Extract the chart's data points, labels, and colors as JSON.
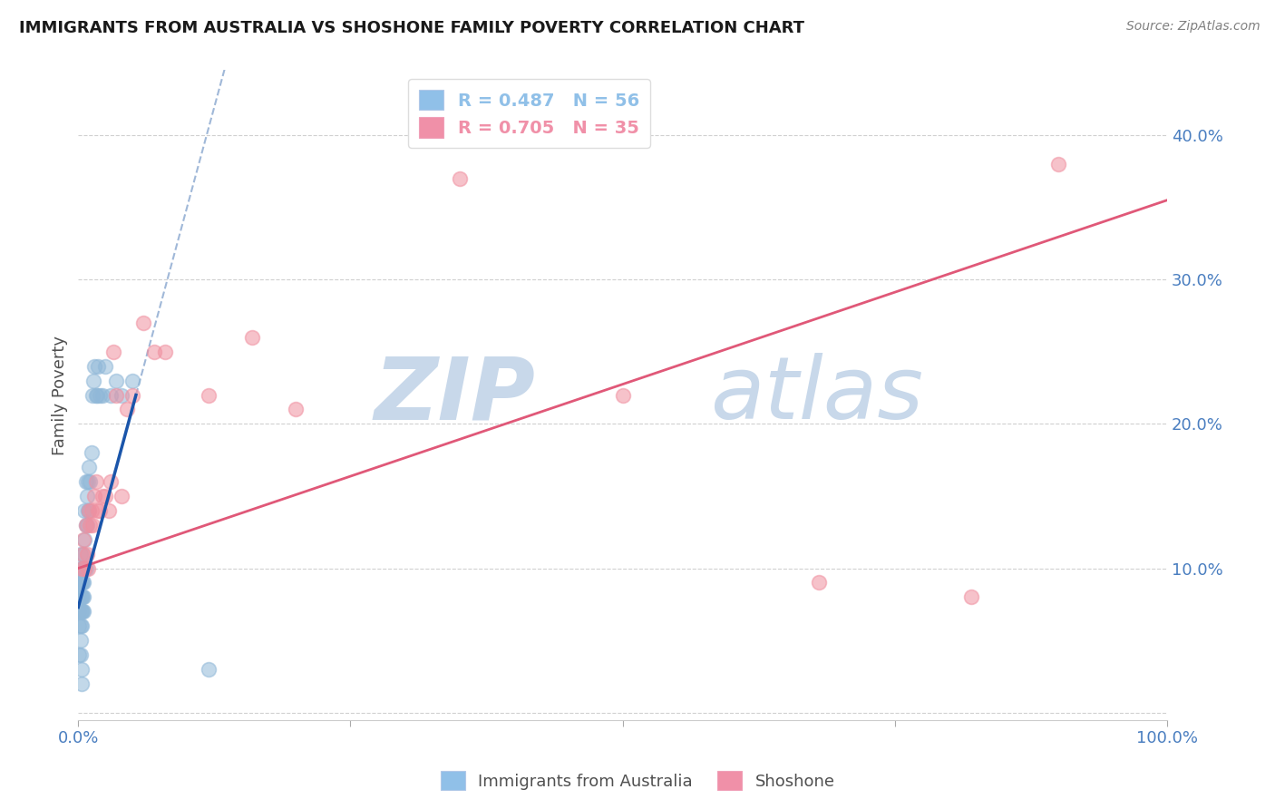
{
  "title": "IMMIGRANTS FROM AUSTRALIA VS SHOSHONE FAMILY POVERTY CORRELATION CHART",
  "source": "Source: ZipAtlas.com",
  "ylabel": "Family Poverty",
  "right_yticklabels": [
    "",
    "10.0%",
    "20.0%",
    "30.0%",
    "40.0%"
  ],
  "xlim": [
    0.0,
    1.0
  ],
  "ylim": [
    -0.005,
    0.445
  ],
  "legend_entry1_label": "R = 0.487   N = 56",
  "legend_entry2_label": "R = 0.705   N = 35",
  "legend_entry1_color": "#90c0e8",
  "legend_entry2_color": "#f090a8",
  "australia_x": [
    0.001,
    0.001,
    0.001,
    0.001,
    0.002,
    0.002,
    0.002,
    0.002,
    0.002,
    0.002,
    0.003,
    0.003,
    0.003,
    0.003,
    0.003,
    0.004,
    0.004,
    0.004,
    0.004,
    0.005,
    0.005,
    0.005,
    0.005,
    0.006,
    0.006,
    0.006,
    0.007,
    0.007,
    0.007,
    0.008,
    0.008,
    0.009,
    0.009,
    0.01,
    0.01,
    0.011,
    0.012,
    0.013,
    0.014,
    0.015,
    0.016,
    0.017,
    0.018,
    0.02,
    0.022,
    0.025,
    0.03,
    0.035,
    0.04,
    0.05,
    0.001,
    0.002,
    0.002,
    0.003,
    0.003,
    0.12
  ],
  "australia_y": [
    0.06,
    0.07,
    0.08,
    0.09,
    0.06,
    0.07,
    0.08,
    0.09,
    0.1,
    0.11,
    0.06,
    0.07,
    0.08,
    0.09,
    0.1,
    0.07,
    0.08,
    0.09,
    0.1,
    0.07,
    0.08,
    0.09,
    0.11,
    0.1,
    0.12,
    0.14,
    0.1,
    0.13,
    0.16,
    0.13,
    0.15,
    0.14,
    0.16,
    0.14,
    0.17,
    0.16,
    0.18,
    0.22,
    0.23,
    0.24,
    0.22,
    0.22,
    0.24,
    0.22,
    0.22,
    0.24,
    0.22,
    0.23,
    0.22,
    0.23,
    0.04,
    0.04,
    0.05,
    0.03,
    0.02,
    0.03
  ],
  "shoshone_x": [
    0.003,
    0.004,
    0.005,
    0.006,
    0.007,
    0.008,
    0.009,
    0.01,
    0.011,
    0.012,
    0.013,
    0.015,
    0.016,
    0.018,
    0.02,
    0.022,
    0.025,
    0.028,
    0.03,
    0.032,
    0.035,
    0.04,
    0.045,
    0.05,
    0.06,
    0.07,
    0.08,
    0.12,
    0.16,
    0.2,
    0.35,
    0.5,
    0.68,
    0.82,
    0.9
  ],
  "shoshone_y": [
    0.1,
    0.11,
    0.12,
    0.1,
    0.13,
    0.11,
    0.1,
    0.14,
    0.13,
    0.14,
    0.13,
    0.15,
    0.16,
    0.14,
    0.14,
    0.15,
    0.15,
    0.14,
    0.16,
    0.25,
    0.22,
    0.15,
    0.21,
    0.22,
    0.27,
    0.25,
    0.25,
    0.22,
    0.26,
    0.21,
    0.37,
    0.22,
    0.09,
    0.08,
    0.38
  ],
  "australia_color": "#90b8d8",
  "shoshone_color": "#f090a0",
  "australia_line_color": "#1a55aa",
  "shoshone_line_color": "#e05878",
  "dashed_line_color": "#a0b8d8",
  "watermark_zip": "ZIP",
  "watermark_atlas": "atlas",
  "watermark_color": "#c8d8ea",
  "background_color": "#ffffff",
  "title_color": "#1a1a1a",
  "tick_color": "#4a7ec0",
  "grid_color": "#d0d0d0",
  "ytick_positions": [
    0.0,
    0.1,
    0.2,
    0.3,
    0.4
  ],
  "blue_line_x_start": 0.0,
  "blue_line_x_end": 0.053,
  "blue_line_y_start": 0.073,
  "blue_line_y_end": 0.22,
  "dash_line_x_start": 0.0,
  "dash_line_x_end": 0.25,
  "pink_line_x_start": 0.0,
  "pink_line_x_end": 1.0,
  "pink_line_y_start": 0.1,
  "pink_line_y_end": 0.355
}
